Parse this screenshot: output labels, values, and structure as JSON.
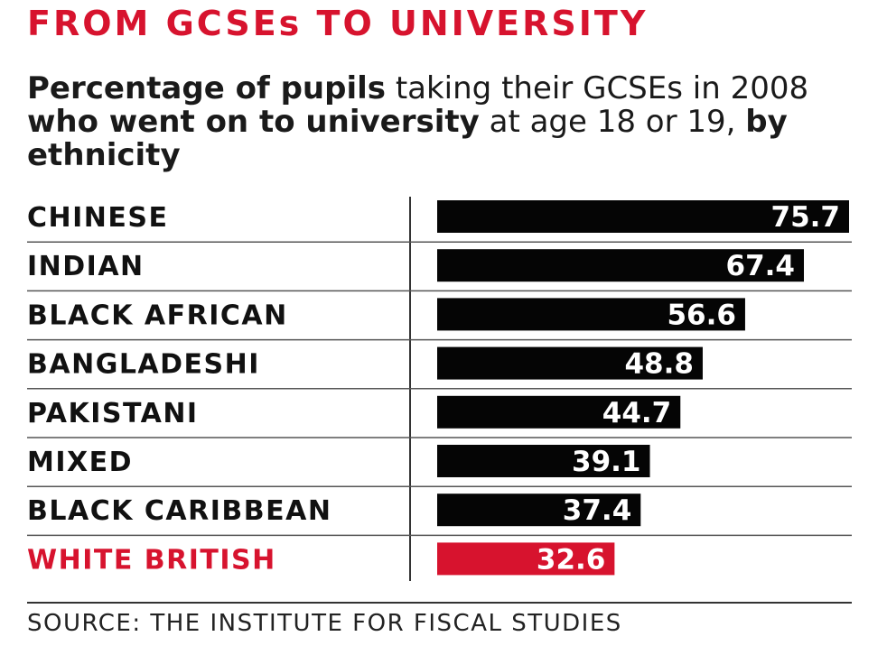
{
  "title": "FROM GCSEs TO UNIVERSITY",
  "subtitle": {
    "p1": "Percentage of pupils",
    "p2": " taking their GCSEs in 2008 ",
    "p3": "who went on to university",
    "p4": " at age 18 or 19, ",
    "p5": "by ethnicity"
  },
  "source": "SOURCE: THE INSTITUTE FOR FISCAL STUDIES",
  "colors": {
    "title": "#d7132e",
    "bar": "#050505",
    "highlight": "#d7132e",
    "text": "#111111",
    "value_text": "#ffffff"
  },
  "chart_data": {
    "type": "bar",
    "orientation": "horizontal",
    "title": "FROM GCSEs TO UNIVERSITY",
    "subtitle": "Percentage of pupils taking their GCSEs in 2008 who went on to university at age 18 or 19, by ethnicity",
    "categories": [
      "CHINESE",
      "INDIAN",
      "BLACK AFRICAN",
      "BANGLADESHI",
      "PAKISTANI",
      "MIXED",
      "BLACK CARIBBEAN",
      "WHITE BRITISH"
    ],
    "values": [
      75.7,
      67.4,
      56.6,
      48.8,
      44.7,
      39.1,
      37.4,
      32.6
    ],
    "value_labels": [
      "75.7",
      "67.4",
      "56.6",
      "48.8",
      "44.7",
      "39.1",
      "37.4",
      "32.6"
    ],
    "highlight": "WHITE BRITISH",
    "xlim": [
      0,
      75.7
    ],
    "grid": false,
    "legend": "none"
  }
}
